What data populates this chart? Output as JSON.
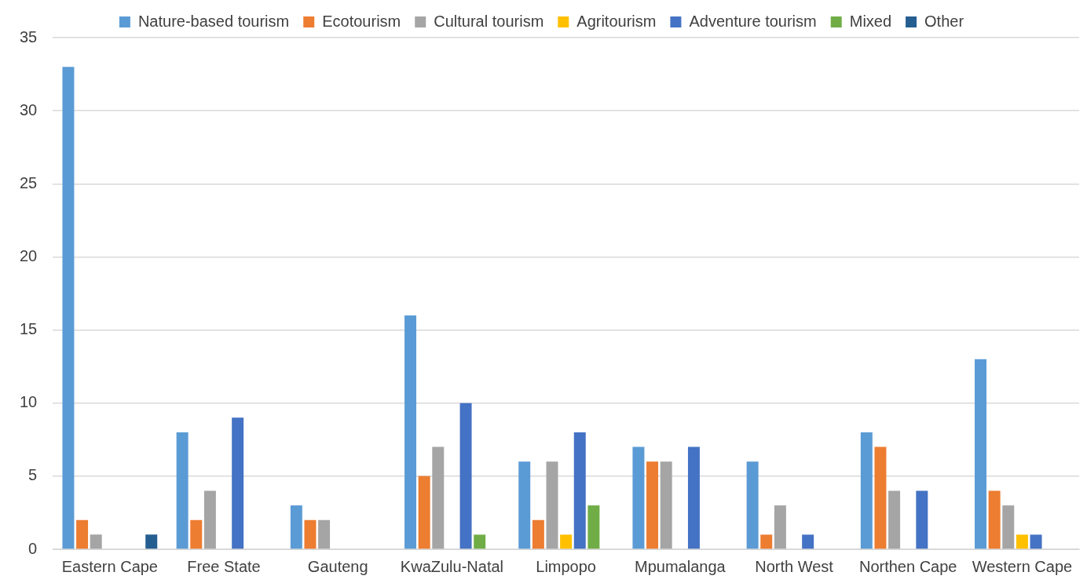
{
  "chart_data": {
    "type": "bar",
    "categories": [
      "Eastern Cape",
      "Free State",
      "Gauteng",
      "KwaZulu-Natal",
      "Limpopo",
      "Mpumalanga",
      "North West",
      "Northen Cape",
      "Western Cape"
    ],
    "series": [
      {
        "name": "Nature-based tourism",
        "color": "#5b9bd5",
        "values": [
          33,
          8,
          3,
          16,
          6,
          7,
          6,
          8,
          13
        ]
      },
      {
        "name": "Ecotourism",
        "color": "#ed7d31",
        "values": [
          2,
          2,
          2,
          5,
          2,
          6,
          1,
          7,
          4
        ]
      },
      {
        "name": "Cultural tourism",
        "color": "#a5a5a5",
        "values": [
          1,
          4,
          2,
          7,
          6,
          6,
          3,
          4,
          3
        ]
      },
      {
        "name": "Agritourism",
        "color": "#ffc000",
        "values": [
          0,
          0,
          0,
          0,
          1,
          0,
          0,
          0,
          1
        ]
      },
      {
        "name": "Adventure tourism",
        "color": "#4472c4",
        "values": [
          0,
          9,
          0,
          10,
          8,
          7,
          1,
          4,
          1
        ]
      },
      {
        "name": "Mixed",
        "color": "#70ad47",
        "values": [
          0,
          0,
          0,
          1,
          3,
          0,
          0,
          0,
          0
        ]
      },
      {
        "name": "Other",
        "color": "#255e91",
        "values": [
          1,
          0,
          0,
          0,
          0,
          0,
          0,
          0,
          0
        ]
      }
    ],
    "ylim": [
      0,
      35
    ],
    "yticks": [
      0,
      5,
      10,
      15,
      20,
      25,
      30,
      35
    ],
    "grid": "y",
    "legend": "top"
  }
}
